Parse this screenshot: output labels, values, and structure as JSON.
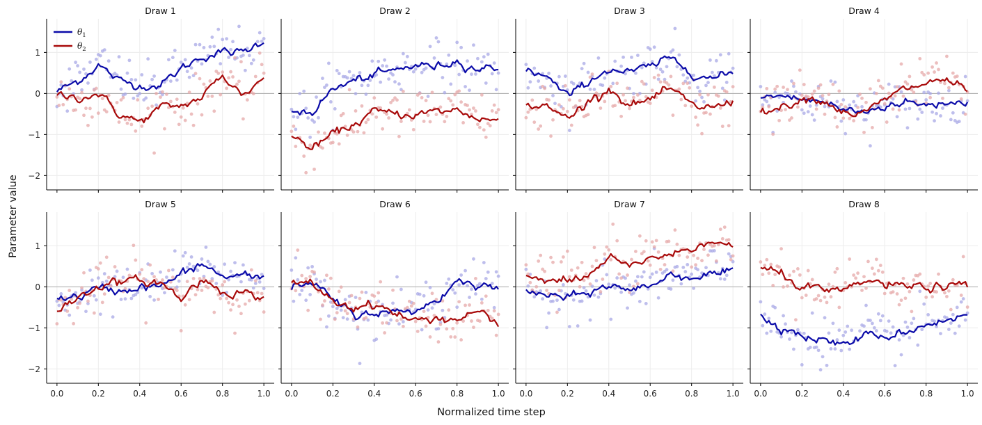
{
  "chart_data": {
    "type": "line",
    "xlabel": "Normalized time step",
    "ylabel": "Parameter value",
    "xlim": [
      -0.05,
      1.05
    ],
    "ylim": [
      -2.35,
      1.82
    ],
    "xticks": [
      0.0,
      0.2,
      0.4,
      0.6,
      0.8,
      1.0
    ],
    "xtick_labels": [
      "0.0",
      "0.2",
      "0.4",
      "0.6",
      "0.8",
      "1.0"
    ],
    "yticks": [
      -2,
      -1,
      0,
      1
    ],
    "ytick_labels": [
      "−2",
      "−1",
      "0",
      "1"
    ],
    "grid": true,
    "reference_line_y": 0,
    "legend": {
      "placement": "top-left",
      "entries": [
        {
          "symbol": "θ",
          "subscript": "1",
          "color": "#0a0aa8"
        },
        {
          "symbol": "θ",
          "subscript": "2",
          "color": "#a80a0a"
        }
      ]
    },
    "colors": {
      "theta1_line": "#0a0aa8",
      "theta2_line": "#a80a0a",
      "theta1_points": "#a8a8e6",
      "theta2_points": "#e6a8a8",
      "zero_line": "#aaaaaa",
      "grid": "#ececec"
    },
    "x": [
      0.0,
      0.1,
      0.2,
      0.3,
      0.4,
      0.5,
      0.6,
      0.7,
      0.8,
      0.9,
      1.0
    ],
    "panels": [
      {
        "title": "Draw 1",
        "series": [
          {
            "values": [
              0.05,
              0.3,
              0.7,
              0.3,
              0.2,
              0.2,
              0.6,
              0.9,
              1.0,
              1.0,
              1.3
            ]
          },
          {
            "values": [
              -0.05,
              -0.1,
              0.0,
              -0.5,
              -0.7,
              -0.35,
              -0.3,
              -0.1,
              0.45,
              -0.05,
              0.4
            ]
          }
        ]
      },
      {
        "title": "Draw 2",
        "series": [
          {
            "values": [
              -0.4,
              -0.45,
              0.1,
              0.3,
              0.45,
              0.55,
              0.7,
              0.65,
              0.8,
              0.6,
              0.65
            ]
          },
          {
            "values": [
              -1.05,
              -1.35,
              -1.0,
              -0.75,
              -0.45,
              -0.5,
              -0.5,
              -0.45,
              -0.4,
              -0.6,
              -0.65
            ]
          }
        ]
      },
      {
        "title": "Draw 3",
        "series": [
          {
            "values": [
              0.6,
              0.4,
              -0.1,
              0.3,
              0.6,
              0.5,
              0.65,
              0.85,
              0.55,
              0.35,
              0.5
            ]
          },
          {
            "values": [
              -0.25,
              -0.35,
              -0.6,
              -0.2,
              0.15,
              -0.3,
              -0.15,
              0.1,
              -0.3,
              -0.35,
              -0.2
            ]
          }
        ]
      },
      {
        "title": "Draw 4",
        "series": [
          {
            "values": [
              -0.1,
              -0.05,
              -0.15,
              -0.2,
              -0.4,
              -0.45,
              -0.3,
              -0.2,
              -0.3,
              -0.2,
              -0.2
            ]
          },
          {
            "values": [
              -0.4,
              -0.35,
              -0.1,
              -0.15,
              -0.45,
              -0.5,
              -0.15,
              0.1,
              0.25,
              0.35,
              0.05
            ]
          }
        ]
      },
      {
        "title": "Draw 5",
        "series": [
          {
            "values": [
              -0.3,
              -0.25,
              -0.05,
              -0.1,
              0.0,
              0.0,
              0.3,
              0.55,
              0.25,
              0.25,
              0.2
            ]
          },
          {
            "values": [
              -0.55,
              -0.3,
              0.05,
              0.1,
              0.15,
              0.1,
              -0.3,
              0.2,
              -0.1,
              -0.15,
              -0.25
            ]
          }
        ]
      },
      {
        "title": "Draw 6",
        "series": [
          {
            "values": [
              0.0,
              0.05,
              -0.3,
              -0.7,
              -0.6,
              -0.65,
              -0.55,
              -0.35,
              0.15,
              0.1,
              -0.05
            ]
          },
          {
            "values": [
              0.05,
              0.1,
              -0.35,
              -0.5,
              -0.4,
              -0.65,
              -0.85,
              -0.75,
              -0.8,
              -0.55,
              -1.0
            ]
          }
        ]
      },
      {
        "title": "Draw 7",
        "series": [
          {
            "values": [
              -0.1,
              -0.2,
              -0.3,
              -0.15,
              0.05,
              -0.1,
              0.05,
              0.3,
              0.25,
              0.3,
              0.35
            ]
          },
          {
            "values": [
              0.3,
              0.2,
              0.1,
              0.25,
              0.7,
              0.45,
              0.75,
              0.75,
              0.95,
              1.2,
              0.9
            ]
          }
        ]
      },
      {
        "title": "Draw 8",
        "series": [
          {
            "values": [
              -0.7,
              -0.95,
              -1.2,
              -1.3,
              -1.4,
              -1.2,
              -1.2,
              -1.1,
              -0.9,
              -0.8,
              -0.7
            ]
          },
          {
            "values": [
              0.45,
              0.3,
              0.0,
              -0.1,
              -0.15,
              0.15,
              0.05,
              0.0,
              0.0,
              0.0,
              0.0
            ]
          }
        ]
      }
    ]
  }
}
